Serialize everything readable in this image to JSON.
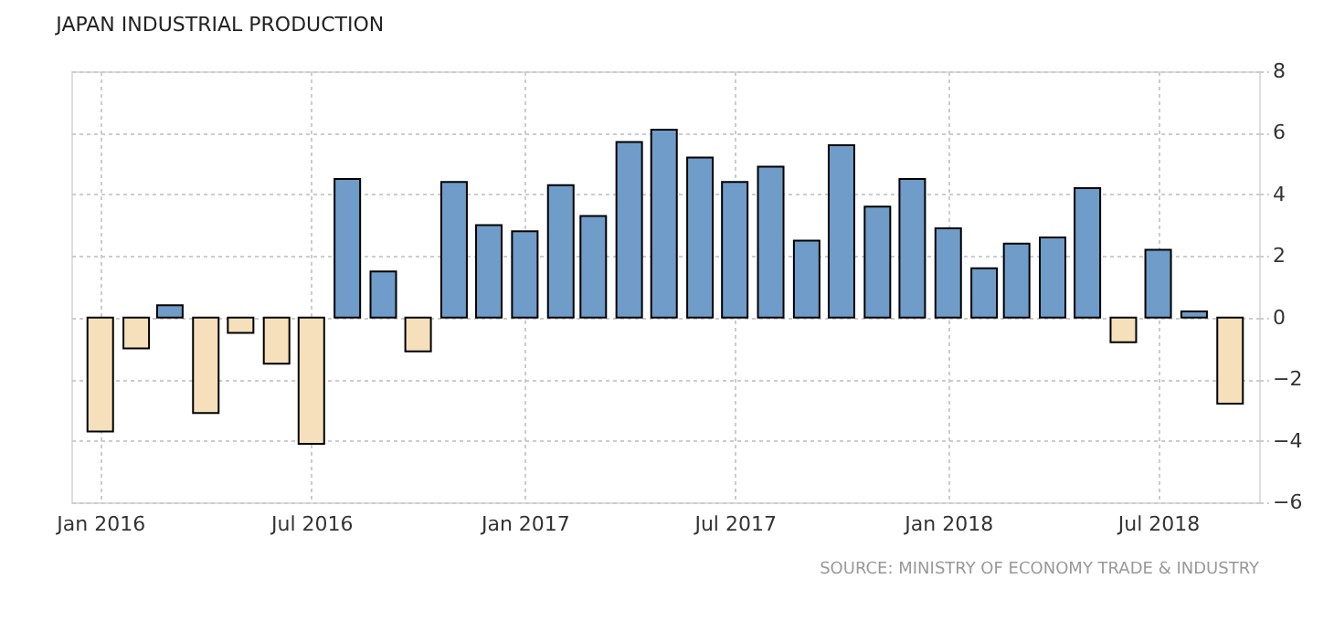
{
  "chart_data": {
    "type": "bar",
    "title": "JAPAN INDUSTRIAL PRODUCTION",
    "x": [
      "2016-01",
      "2016-02",
      "2016-03",
      "2016-04",
      "2016-05",
      "2016-06",
      "2016-07",
      "2016-08",
      "2016-09",
      "2016-10",
      "2016-11",
      "2016-12",
      "2017-01",
      "2017-02",
      "2017-03",
      "2017-04",
      "2017-05",
      "2017-06",
      "2017-07",
      "2017-08",
      "2017-09",
      "2017-10",
      "2017-11",
      "2017-12",
      "2018-01",
      "2018-02",
      "2018-03",
      "2018-04",
      "2018-05",
      "2018-06",
      "2018-07",
      "2018-08",
      "2018-09"
    ],
    "values": [
      -3.7,
      -1.0,
      0.4,
      -3.1,
      -0.5,
      -1.5,
      -4.1,
      4.5,
      1.5,
      -1.1,
      4.4,
      3.0,
      2.8,
      4.3,
      3.3,
      5.7,
      6.1,
      5.2,
      4.4,
      4.9,
      2.5,
      5.6,
      3.6,
      4.5,
      2.9,
      1.6,
      2.4,
      2.6,
      4.2,
      -0.8,
      2.2,
      0.2,
      -2.8
    ],
    "colors": [
      "#f5e0bb",
      "#f5e0bb",
      "#6f9cc8",
      "#f5e0bb",
      "#f5e0bb",
      "#f5e0bb",
      "#f5e0bb",
      "#6f9cc8",
      "#6f9cc8",
      "#f5e0bb",
      "#6f9cc8",
      "#6f9cc8",
      "#6f9cc8",
      "#6f9cc8",
      "#6f9cc8",
      "#6f9cc8",
      "#6f9cc8",
      "#6f9cc8",
      "#6f9cc8",
      "#6f9cc8",
      "#6f9cc8",
      "#6f9cc8",
      "#6f9cc8",
      "#6f9cc8",
      "#6f9cc8",
      "#6f9cc8",
      "#6f9cc8",
      "#6f9cc8",
      "#6f9cc8",
      "#f5e0bb",
      "#6f9cc8",
      "#6f9cc8",
      "#f5e0bb"
    ],
    "xlim": [
      "2015-12-07",
      "2018-09-26"
    ],
    "xticks": [
      {
        "value": "2016-01",
        "label": "Jan 2016"
      },
      {
        "value": "2016-07",
        "label": "Jul 2016"
      },
      {
        "value": "2017-01",
        "label": "Jan 2017"
      },
      {
        "value": "2017-07",
        "label": "Jul 2017"
      },
      {
        "value": "2018-01",
        "label": "Jan 2018"
      },
      {
        "value": "2018-07",
        "label": "Jul 2018"
      }
    ],
    "ylim": [
      -6,
      8
    ],
    "yticks": [
      -6,
      -4,
      -2,
      0,
      2,
      4,
      6,
      8
    ],
    "grid": true,
    "annotations": [
      "SOURCE: MINISTRY OF ECONOMY TRADE & INDUSTRY"
    ]
  }
}
